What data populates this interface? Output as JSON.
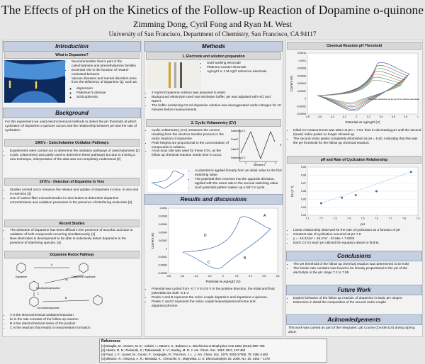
{
  "header": {
    "title": "The Effects of pH on the Kinetics of the Follow-up Reaction of Dopamine o-quinone",
    "authors": "Zimming Dong, Cyril Fong and Ryan M. West",
    "affiliation": "University of San Francisco, Department of Chemistry, San Francisco, CA 94117"
  },
  "introduction": {
    "heading": "Introduction",
    "what": {
      "heading": "What is Dopamine?",
      "bullets": [
        "Neurotransmitter that is part of the catecholamine and phenethylamine families",
        "Essential role in the function of reward-motivated behavior",
        "Various diseases and mental disorders arise from the deficiency of dopamine [1], such as:"
      ],
      "sub": [
        "depression",
        "Parkinson's disease",
        "Schizophrenia"
      ]
    }
  },
  "background": {
    "heading": "Background",
    "text": "For this experiment we used electrochemical methods to detect the pH threshold at which cyclization of dopamine o-quinone occurs and the relationship between pH and the rate of cyclization.",
    "s1960": {
      "heading": "1960's - Catecholamine Oxidation Pathways",
      "bullets": [
        "Experiments were carried out to determine the oxidation pathways of catecholamines [2]",
        "Cyclic voltammetry was partly used to determine these pathways but due to it being a new technique, interpretation of the data was not completely understood [2]"
      ]
    },
    "s1970": {
      "heading": "1970's - Detection of Dopamine In Vivo",
      "bullets": [
        "Studies carried out to measure the release and uptake of dopamine in mice, in vivo and in real-time [3]",
        "Use of carbon fiber microelectrodes in mice brains to determine dopamine concentrations and oxidation processes in the presence of interfering molecules [3]"
      ]
    },
    "recent": {
      "heading": "Recent Studies",
      "bullets": [
        "The detection of dopamine has been difficult in the presence of ascorbic acid due to oxidation of both compounds occurring simultaneously. [4]",
        "New electrodes in development to be able to selectively detect dopamine in the presence of interfering species. [4]"
      ]
    },
    "redox": {
      "heading": "Dopamine Redox Pathway",
      "labels": [
        "Dopamine",
        "Dopamine o-quinone",
        "5,6-dihydroxyindoline",
        "5,6-indolinequinone",
        "A",
        "kc",
        "B",
        "C"
      ],
      "legend": [
        "A is the electrochemical oxidation/reduction",
        "kc is the rate constant of the follow-up reaction",
        "B is the electrochemical redox of the product",
        "C is the reaction that results in neuromelanin formation"
      ]
    }
  },
  "methods": {
    "heading": "Methods",
    "electrode": {
      "heading": "1. Electrode and solution preparation",
      "parts": [
        "Gold working electrode",
        "Platinum counter electrode",
        "Ag/AgCl in 1 M AgCl reference electrode."
      ],
      "bullets": [
        "2 mg/ml Dopamine solution was prepared in water.",
        "Background electrolyte used was McIlvaine buffer, pH was adjusted with HCl and NaOH.",
        "The buffer containing 0.5 ml dopamine solution was deoxygenated under nitrogen for 10 minutes before measurements."
      ]
    },
    "cv": {
      "heading": "2. Cyclic Voltammetry (CV)",
      "bullets": [
        "Cyclic voltammetry (CV) measures the current resulting from the electron transfer process in the redox reaction of dopamine.",
        "Peak heights are proportional to the concentration of compounds in solution.",
        "A low scan rate was used for these CVs, as the follow up chemical reaction needs time to occur."
      ],
      "more": [
        "A potential is applied linearly from an initial value to the first switching value.",
        "The potential then reverses into the opposite direction, applied with the same rate to the second switching value.",
        "Such potential pattern makes up a full CV cycle."
      ],
      "waveform": {
        "labels": [
          "Switching E 1",
          "Final E",
          "Initial E",
          "Switching E 2",
          "Segment #",
          "E"
        ],
        "segments": [
          "1",
          "2",
          "3",
          "4"
        ]
      }
    }
  },
  "results": {
    "heading": "Results and discussions",
    "plot": {
      "ylabel": "Current (A)",
      "xlabel": "Potential vs Ag/AgCl (V)",
      "yticks": [
        "0.0001",
        "0.00008",
        "0.00006",
        "0.00004",
        "0.00002",
        "0",
        "-0.00002",
        "-0.00004",
        "-0.00006"
      ],
      "xticks": [
        "-0.8",
        "-0.6",
        "-0.4",
        "-0.2",
        "0",
        "0.2",
        "0.4",
        "0.6",
        "0.8"
      ],
      "peaks": [
        "A",
        "B",
        "C",
        "D"
      ]
    },
    "bullets": [
      "Potential was cycled from -0.7 V to 0.8 V in the positive direction, the initial and final potentials are both -0.1 V.",
      "Peaks A and B represent the redox couple dopamine and dopamine-o-quinone.",
      "Peaks C and D represent the redox couple leukodopaminochrome and dopaminochrome."
    ]
  },
  "threshold": {
    "heading": "Chemical Reaction pH Threshold",
    "plot": {
      "ylabel": "Current (A)",
      "xlabel": "Potential vs Ag/AgCl (V)",
      "yticks": [
        "0.00012",
        "0.0001",
        "0.00008",
        "0.00006",
        "0.00004",
        "0.00002",
        "0",
        "-0.00002",
        "-0.00004"
      ],
      "xticks": [
        "-0.8",
        "-0.6",
        "-0.4",
        "-0.2",
        "0",
        "0.2",
        "0.4",
        "0.6",
        "0.8",
        "1"
      ],
      "note": "The peaks diminished as the pH of the solution decreased"
    },
    "bullets": [
      "Initial CV measurement was taken at pH = 7.04, then in decreasing pH until the second (lower) redox peaks no longer showed up.",
      "The second redox peaks completely diminished at pH = 5.60, indicating that this was the pH threshold for the follow up chemical reaction."
    ]
  },
  "rate": {
    "heading": "pH and Rate of Cyclization Relationship",
    "plot": {
      "xlabel": "pH",
      "ylabel": "kc (s⁻¹)",
      "x": [
        7.2,
        7.35,
        7.45,
        7.6,
        7.85
      ],
      "values": [
        0.045,
        0.052,
        0.055,
        0.06,
        0.084
      ],
      "xlim": [
        7.1,
        7.9
      ],
      "ylim": [
        0.03,
        0.09
      ],
      "xticks": [
        7.1,
        7.2,
        7.3,
        7.4,
        7.5,
        7.6,
        7.7,
        7.8,
        7.9
      ],
      "yticks": [
        0.03,
        0.04,
        0.05,
        0.06,
        0.07,
        0.08,
        0.09
      ]
    },
    "bullets": [
      "Linear relationship observed for the rate of cyclization as a function of pH",
      "Greatest rate of cyclization occurred at pH 7.8",
      "y = -10.224x³ + 26.27x² - 23.56x + 7.5034",
      "Each CV for each pH utilized the equation above to find kc"
    ]
  },
  "conclusions": {
    "heading": "Conclusions",
    "bullets": [
      "The pH threshold of the follow up chemical reaction was determined to be 5.60",
      "The kinetic rate constant was found to be linearly proportional to the pH of the electrolyte in the pH range 7.2 to 7.85."
    ]
  },
  "future": {
    "heading": "Future Work",
    "bullets": [
      "Explore behavior of the follow up reaction of dopamine in basic pH ranges.",
      "Determine in detail the composition of the second redox couple."
    ]
  },
  "acknowledgements": {
    "heading": "Acknowledgements",
    "text": "This work was carried as part of the Integrated Lab Course (CHEM 410) during Spring 2019."
  },
  "references": {
    "heading": "References",
    "items": [
      "[1] Bisaglia, M.; Sonaro, M. E.; Arduini, I.; Mammi, S.; Bubacco, L. Biochimica et Biophysica Acta 1802 (2010) 699–706",
      "[2] Adams, R. N.; Piekarski, S.; Tatawawadi, S. V.; Hawley, M. D. J. Am. Chem. Soc. 1967, 89:2, 447-450",
      "[3] Pujol, J. F.; Jouvet, M.; Gonon, F.; Cespuglio, R.; Ponchon, J. L. J. Am. Chem. Soc. 1979, 0003-27006, 79, 0351-1483",
      "[4] Bilewicz, R.; Olszyna, A. R.; Biesiada, K.; Chmurski, K.; Majewska, U. E. Electroanalysis 18, 2006, No. 15, 1463 – 1470"
    ]
  }
}
